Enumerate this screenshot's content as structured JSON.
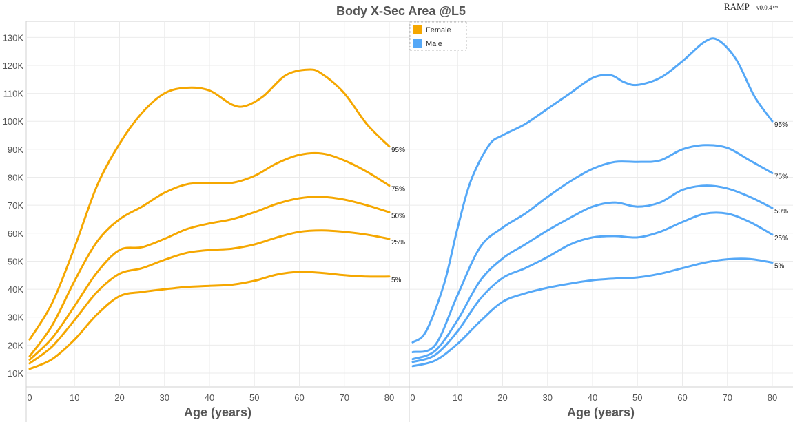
{
  "title": "Body X-Sec Area @L5",
  "brand": {
    "name": "RAMP",
    "version": "v0.0.4™"
  },
  "legend": {
    "placement": "top-left of right panel",
    "items": [
      {
        "label": "Female",
        "color": "#F5A700"
      },
      {
        "label": "Male",
        "color": "#55A8F7"
      }
    ]
  },
  "chart_data": [
    {
      "type": "line",
      "panel": "Female",
      "color": "#F5A700",
      "xlabel": "Age (years)",
      "ylabel": "",
      "xlim": [
        0,
        82
      ],
      "ylim": [
        5000,
        135000
      ],
      "xticks": [
        0,
        10,
        20,
        30,
        40,
        50,
        60,
        70,
        80
      ],
      "yticks": [
        10000,
        20000,
        30000,
        40000,
        50000,
        60000,
        70000,
        80000,
        90000,
        100000,
        110000,
        120000,
        130000
      ],
      "ytick_labels": [
        "10K",
        "20K",
        "30K",
        "40K",
        "50K",
        "60K",
        "70K",
        "80K",
        "90K",
        "100K",
        "110K",
        "120K",
        "130K"
      ],
      "grid": true,
      "series": [
        {
          "name": "95%",
          "x": [
            0,
            5,
            10,
            15,
            20,
            25,
            30,
            35,
            40,
            45,
            48,
            52,
            57,
            62,
            65,
            70,
            75,
            80
          ],
          "y": [
            22000,
            35000,
            55000,
            77000,
            92000,
            103000,
            110000,
            112000,
            111000,
            106000,
            105500,
            109000,
            116500,
            118500,
            117000,
            110000,
            99000,
            91000
          ]
        },
        {
          "name": "75%",
          "x": [
            0,
            5,
            10,
            15,
            20,
            25,
            30,
            35,
            40,
            45,
            50,
            55,
            60,
            65,
            70,
            75,
            80
          ],
          "y": [
            16000,
            27000,
            43000,
            57000,
            65000,
            69500,
            74500,
            77500,
            78000,
            78000,
            80500,
            85000,
            88000,
            88500,
            86000,
            82000,
            77000
          ]
        },
        {
          "name": "50%",
          "x": [
            0,
            5,
            10,
            15,
            20,
            25,
            30,
            35,
            40,
            45,
            50,
            55,
            60,
            65,
            70,
            75,
            80
          ],
          "y": [
            14800,
            22500,
            34000,
            46000,
            54000,
            55000,
            58000,
            61500,
            63500,
            65000,
            67500,
            70500,
            72500,
            73000,
            72000,
            70000,
            67500
          ]
        },
        {
          "name": "25%",
          "x": [
            0,
            5,
            10,
            15,
            20,
            25,
            30,
            35,
            40,
            45,
            50,
            55,
            60,
            65,
            70,
            75,
            80
          ],
          "y": [
            13500,
            19500,
            29000,
            39000,
            45500,
            47500,
            50500,
            53000,
            54000,
            54500,
            56000,
            58500,
            60500,
            61000,
            60500,
            59500,
            58000
          ]
        },
        {
          "name": "5%",
          "x": [
            0,
            5,
            10,
            15,
            20,
            25,
            30,
            35,
            40,
            45,
            50,
            55,
            60,
            65,
            70,
            75,
            80
          ],
          "y": [
            11500,
            15000,
            22000,
            31000,
            37500,
            39000,
            40000,
            40800,
            41200,
            41600,
            43000,
            45200,
            46200,
            45800,
            45000,
            44500,
            44500
          ]
        }
      ],
      "point_labels": [
        "95%",
        "75%",
        "50%",
        "25%",
        "5%"
      ]
    },
    {
      "type": "line",
      "panel": "Male",
      "color": "#55A8F7",
      "xlabel": "Age (years)",
      "ylabel": "",
      "xlim": [
        0,
        82
      ],
      "ylim": [
        5000,
        135000
      ],
      "xticks": [
        0,
        10,
        20,
        30,
        40,
        50,
        60,
        70,
        80
      ],
      "yticks": [
        10000,
        20000,
        30000,
        40000,
        50000,
        60000,
        70000,
        80000,
        90000,
        100000,
        110000,
        120000,
        130000
      ],
      "grid": true,
      "series": [
        {
          "name": "95%",
          "x": [
            0,
            3,
            7,
            10,
            13,
            17,
            20,
            25,
            30,
            35,
            40,
            44,
            47,
            50,
            55,
            60,
            65,
            68,
            72,
            76,
            80
          ],
          "y": [
            21000,
            25000,
            42000,
            62000,
            79000,
            91500,
            95000,
            99000,
            104500,
            110000,
            115500,
            116500,
            114000,
            113000,
            115500,
            121500,
            128500,
            129000,
            122000,
            109000,
            100000
          ]
        },
        {
          "name": "75%",
          "x": [
            0,
            5,
            10,
            15,
            20,
            25,
            30,
            35,
            40,
            45,
            50,
            55,
            60,
            65,
            70,
            75,
            80
          ],
          "y": [
            17500,
            20000,
            38000,
            55000,
            62000,
            67000,
            73000,
            78500,
            83000,
            85500,
            85500,
            86000,
            90000,
            91500,
            90500,
            86000,
            81500
          ]
        },
        {
          "name": "50%",
          "x": [
            0,
            5,
            10,
            15,
            20,
            25,
            30,
            35,
            40,
            45,
            50,
            55,
            60,
            65,
            70,
            75,
            80
          ],
          "y": [
            15000,
            18000,
            29000,
            43000,
            51000,
            56000,
            61000,
            65500,
            69500,
            71000,
            69500,
            71000,
            75500,
            77000,
            76000,
            73000,
            69000
          ]
        },
        {
          "name": "25%",
          "x": [
            0,
            5,
            10,
            15,
            20,
            25,
            30,
            35,
            40,
            45,
            50,
            55,
            60,
            65,
            70,
            75,
            80
          ],
          "y": [
            14000,
            16500,
            25000,
            36500,
            44000,
            47500,
            51500,
            56000,
            58500,
            59000,
            58500,
            60500,
            64000,
            67000,
            67000,
            64000,
            59500
          ]
        },
        {
          "name": "5%",
          "x": [
            0,
            5,
            10,
            15,
            20,
            25,
            30,
            35,
            40,
            45,
            50,
            55,
            60,
            65,
            70,
            75,
            80
          ],
          "y": [
            12500,
            14500,
            20500,
            28500,
            35500,
            38500,
            40500,
            42000,
            43200,
            43800,
            44200,
            45500,
            47500,
            49500,
            50700,
            50800,
            49500
          ]
        }
      ],
      "point_labels": [
        "95%",
        "75%",
        "50%",
        "25%",
        "5%"
      ]
    }
  ]
}
